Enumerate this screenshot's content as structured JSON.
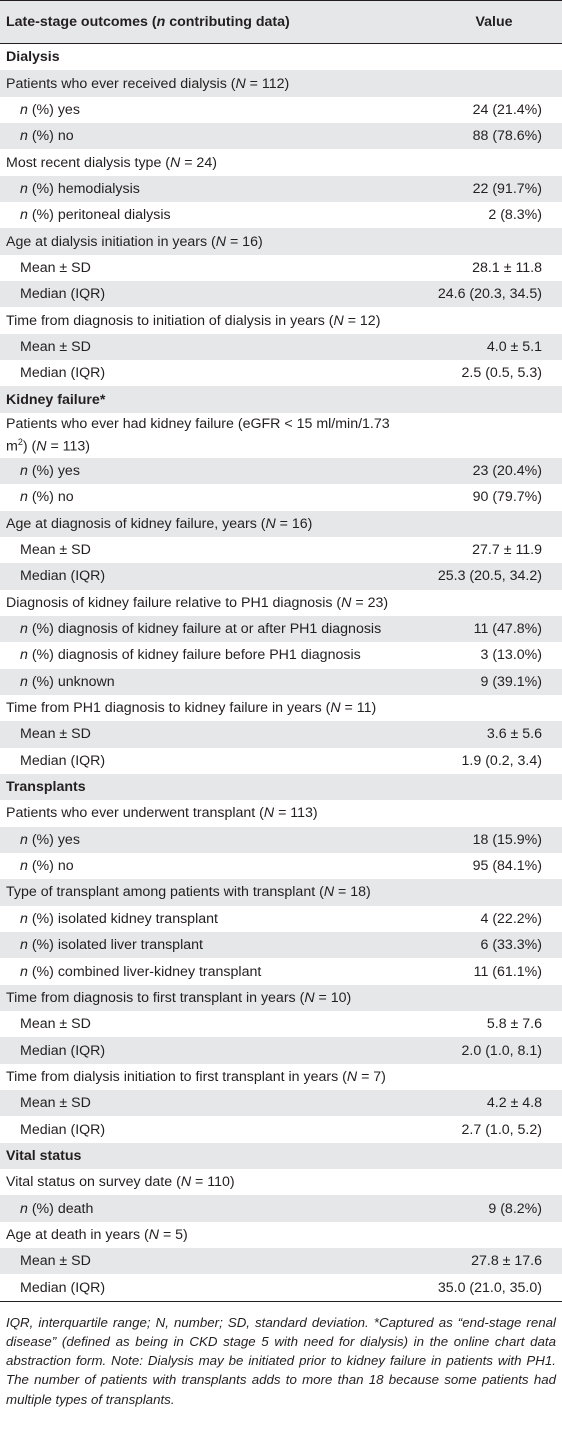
{
  "header": {
    "col1": "Late-stage outcomes (n contributing data)",
    "col2": "Value"
  },
  "rows": [
    {
      "type": "sec",
      "label": "Dialysis",
      "value": ""
    },
    {
      "type": "sub",
      "label": "Patients who ever received dialysis (N = 112)",
      "value": ""
    },
    {
      "type": "ind",
      "label": "n (%) yes",
      "value": "24 (21.4%)"
    },
    {
      "type": "ind",
      "label": "n (%) no",
      "value": "88 (78.6%)"
    },
    {
      "type": "sub",
      "label": "Most recent dialysis type (N = 24)",
      "value": ""
    },
    {
      "type": "ind",
      "label": "n (%) hemodialysis",
      "value": "22 (91.7%)"
    },
    {
      "type": "ind",
      "label": "n (%) peritoneal dialysis",
      "value": "2 (8.3%)"
    },
    {
      "type": "sub",
      "label": "Age at dialysis initiation in years (N = 16)",
      "value": ""
    },
    {
      "type": "ind",
      "label": "Mean ± SD",
      "value": "28.1 ± 11.8"
    },
    {
      "type": "ind",
      "label": "Median (IQR)",
      "value": "24.6 (20.3, 34.5)"
    },
    {
      "type": "sub",
      "label": "Time from diagnosis to initiation of dialysis in years (N = 12)",
      "value": ""
    },
    {
      "type": "ind",
      "label": "Mean ± SD",
      "value": "4.0 ± 5.1"
    },
    {
      "type": "ind",
      "label": "Median (IQR)",
      "value": "2.5 (0.5, 5.3)"
    },
    {
      "type": "sec",
      "label": "Kidney failure*",
      "value": ""
    },
    {
      "type": "two",
      "label": "Patients who ever had kidney failure (eGFR < 15 ml/min/1.73",
      "label2": "m",
      "sup": "2",
      "label3": ") (N = 113)",
      "value": ""
    },
    {
      "type": "ind",
      "label": "n (%) yes",
      "value": "23 (20.4%)"
    },
    {
      "type": "ind",
      "label": "n (%) no",
      "value": "90 (79.7%)"
    },
    {
      "type": "sub",
      "label": "Age at diagnosis of kidney failure, years (N = 16)",
      "value": ""
    },
    {
      "type": "ind",
      "label": "Mean ± SD",
      "value": "27.7 ± 11.9"
    },
    {
      "type": "ind",
      "label": "Median (IQR)",
      "value": "25.3 (20.5, 34.2)"
    },
    {
      "type": "sub",
      "label": "Diagnosis of kidney failure relative to PH1 diagnosis (N = 23)",
      "value": ""
    },
    {
      "type": "ind",
      "label": "n (%) diagnosis of kidney failure at or after PH1 diagnosis",
      "value": "11 (47.8%)"
    },
    {
      "type": "ind",
      "label": "n (%) diagnosis of kidney failure before PH1 diagnosis",
      "value": "3 (13.0%)"
    },
    {
      "type": "ind",
      "label": "n (%) unknown",
      "value": "9 (39.1%)"
    },
    {
      "type": "sub",
      "label": "Time from PH1 diagnosis to kidney failure in years (N = 11)",
      "value": ""
    },
    {
      "type": "ind",
      "label": "Mean ± SD",
      "value": "3.6 ± 5.6"
    },
    {
      "type": "ind",
      "label": "Median (IQR)",
      "value": "1.9 (0.2, 3.4)"
    },
    {
      "type": "sec",
      "label": "Transplants",
      "value": ""
    },
    {
      "type": "sub",
      "label": "Patients who ever underwent transplant (N = 113)",
      "value": ""
    },
    {
      "type": "ind",
      "label": "n (%) yes",
      "value": "18 (15.9%)"
    },
    {
      "type": "ind",
      "label": "n (%) no",
      "value": "95 (84.1%)"
    },
    {
      "type": "sub",
      "label": "Type of transplant among patients with transplant (N = 18)",
      "value": ""
    },
    {
      "type": "ind",
      "label": "n (%) isolated kidney transplant",
      "value": "4 (22.2%)"
    },
    {
      "type": "ind",
      "label": "n (%) isolated liver transplant",
      "value": "6 (33.3%)"
    },
    {
      "type": "ind",
      "label": "n (%) combined liver-kidney transplant",
      "value": "11 (61.1%)"
    },
    {
      "type": "sub",
      "label": "Time from diagnosis to first transplant in years (N = 10)",
      "value": ""
    },
    {
      "type": "ind",
      "label": "Mean ± SD",
      "value": "5.8 ± 7.6"
    },
    {
      "type": "ind",
      "label": "Median (IQR)",
      "value": "2.0 (1.0, 8.1)"
    },
    {
      "type": "sub",
      "label": "Time from dialysis initiation to first transplant in years (N = 7)",
      "value": ""
    },
    {
      "type": "ind",
      "label": "Mean ± SD",
      "value": "4.2 ± 4.8"
    },
    {
      "type": "ind",
      "label": "Median (IQR)",
      "value": "2.7 (1.0, 5.2)"
    },
    {
      "type": "sec",
      "label": "Vital status",
      "value": ""
    },
    {
      "type": "sub",
      "label": "Vital status on survey date (N = 110)",
      "value": ""
    },
    {
      "type": "ind",
      "label": "n (%) death",
      "value": "9 (8.2%)"
    },
    {
      "type": "sub",
      "label": "Age at death in years (N = 5)",
      "value": ""
    },
    {
      "type": "ind",
      "label": "Mean ± SD",
      "value": "27.8 ± 17.6"
    },
    {
      "type": "ind",
      "label": "Median (IQR)",
      "value": "35.0 (21.0, 35.0)"
    }
  ],
  "footnote": "IQR, interquartile range; N, number; SD, standard deviation. *Captured as “end-stage renal disease” (defined as being in CKD stage 5 with need for dialysis) in the online chart data abstraction form. Note: Dialysis may be initiated prior to kidney failure in patients with PH1. The number of patients with transplants adds to more than 18 because some patients had multiple types of transplants."
}
